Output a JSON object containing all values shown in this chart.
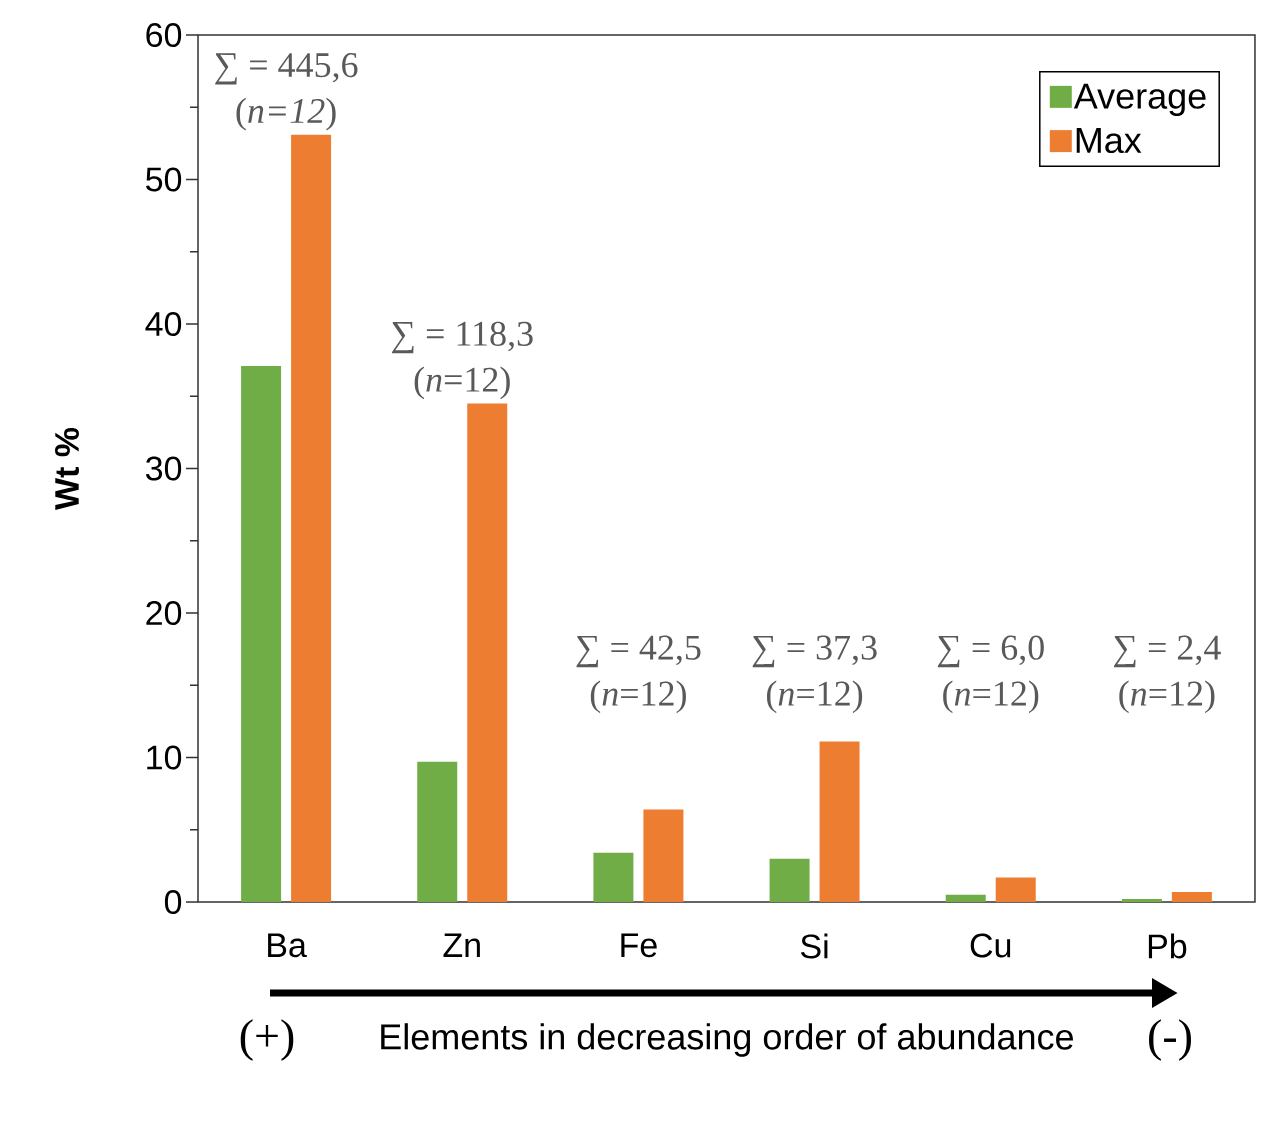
{
  "chart_data": {
    "type": "bar",
    "ylabel": "Wt %",
    "xlabel": "Elements in decreasing order of abundance",
    "categories": [
      "Ba",
      "Zn",
      "Fe",
      "Si",
      "Cu",
      "Pb"
    ],
    "series": [
      {
        "name": "Average",
        "color": "#70ad47",
        "values": [
          37.1,
          9.7,
          3.4,
          3.0,
          0.5,
          0.2
        ]
      },
      {
        "name": "Max",
        "color": "#ed7d31",
        "values": [
          53.1,
          34.5,
          6.4,
          11.1,
          1.7,
          0.7
        ]
      }
    ],
    "ylim": [
      0,
      60
    ],
    "yticks": [
      0,
      10,
      20,
      30,
      40,
      50,
      60
    ],
    "legend": "top right",
    "annotations": [
      "∑ = 445,6",
      "(*n=12*)",
      "∑ = 118,3",
      "(*n*=12)",
      "∑ = 42,5",
      "(*n*=12)",
      "∑ = 37,3",
      "(*n*=12)",
      "∑ = 6,0",
      "(*n*=12)",
      "∑ = 2,4",
      "(*n*=12)",
      "(+)",
      "(-)"
    ]
  }
}
